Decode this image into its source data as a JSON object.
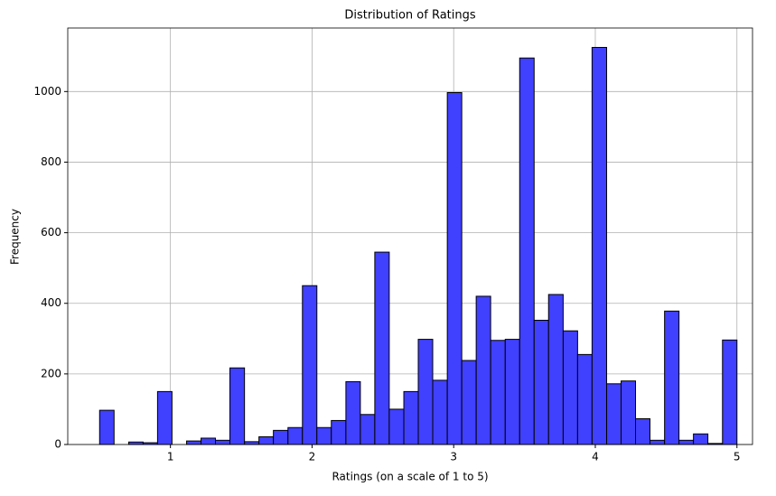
{
  "chart_data": {
    "type": "histogram",
    "title": "Distribution of Ratings",
    "x_label": "Ratings (on a scale of 1 to 5)",
    "y_label": "Frequency",
    "bins": [
      0.5,
      0.602,
      0.705,
      0.807,
      0.909,
      1.011,
      1.114,
      1.216,
      1.318,
      1.42,
      1.523,
      1.625,
      1.727,
      1.83,
      1.932,
      2.034,
      2.136,
      2.239,
      2.341,
      2.443,
      2.545,
      2.648,
      2.75,
      2.852,
      2.955,
      3.057,
      3.159,
      3.261,
      3.364,
      3.466,
      3.568,
      3.67,
      3.773,
      3.875,
      3.977,
      4.08,
      4.182,
      4.284,
      4.386,
      4.489,
      4.591,
      4.693,
      4.795,
      4.898,
      5.0
    ],
    "values": [
      97,
      0,
      7,
      5,
      150,
      0,
      10,
      18,
      12,
      217,
      8,
      22,
      40,
      48,
      450,
      48,
      68,
      178,
      85,
      545,
      100,
      150,
      298,
      182,
      997,
      238,
      420,
      295,
      298,
      1095,
      352,
      425,
      322,
      255,
      1125,
      172,
      180,
      73,
      12,
      378,
      12,
      30,
      3,
      296
    ],
    "color": "#4040ff",
    "xlim": [
      0.275,
      5.11
    ],
    "xticks": [
      1,
      2,
      3,
      4,
      5
    ],
    "ylim": [
      0,
      1180
    ],
    "yticks": [
      0,
      200,
      400,
      600,
      800,
      1000
    ],
    "grid": true
  }
}
